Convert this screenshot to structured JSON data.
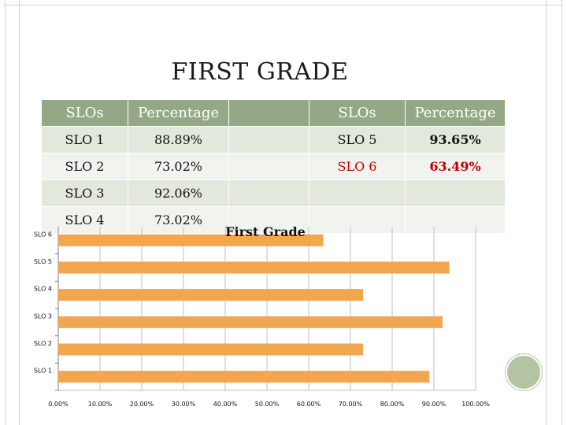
{
  "slide": {
    "title": "FIRST GRADE"
  },
  "table": {
    "headers": [
      "SLOs",
      "Percentage",
      "",
      "SLOs",
      "Percentage"
    ],
    "rows": [
      [
        "SLO 1",
        "88.89%",
        "",
        "SLO 5",
        "93.65%"
      ],
      [
        "SLO 2",
        "73.02%",
        "",
        "SLO 6",
        "63.49%"
      ],
      [
        "SLO 3",
        "92.06%",
        "",
        "",
        ""
      ],
      [
        "SLO 4",
        "73.02%",
        "",
        "",
        ""
      ]
    ],
    "highlight_color": "#c00000"
  },
  "chart_data": {
    "type": "bar",
    "orientation": "horizontal",
    "title": "First Grade",
    "categories": [
      "SLO 1",
      "SLO 2",
      "SLO 3",
      "SLO 4",
      "SLO 5",
      "SLO 6"
    ],
    "values": [
      88.89,
      73.02,
      92.06,
      73.02,
      93.65,
      63.49
    ],
    "xlim": [
      0,
      100
    ],
    "x_ticks": [
      "0.00%",
      "10.00%",
      "20.00%",
      "30.00%",
      "40.00%",
      "50.00%",
      "60.00%",
      "70.00%",
      "80.00%",
      "90.00%",
      "100.00%"
    ],
    "grid": true,
    "bar_color": "#f2a64f",
    "legend": "none"
  }
}
